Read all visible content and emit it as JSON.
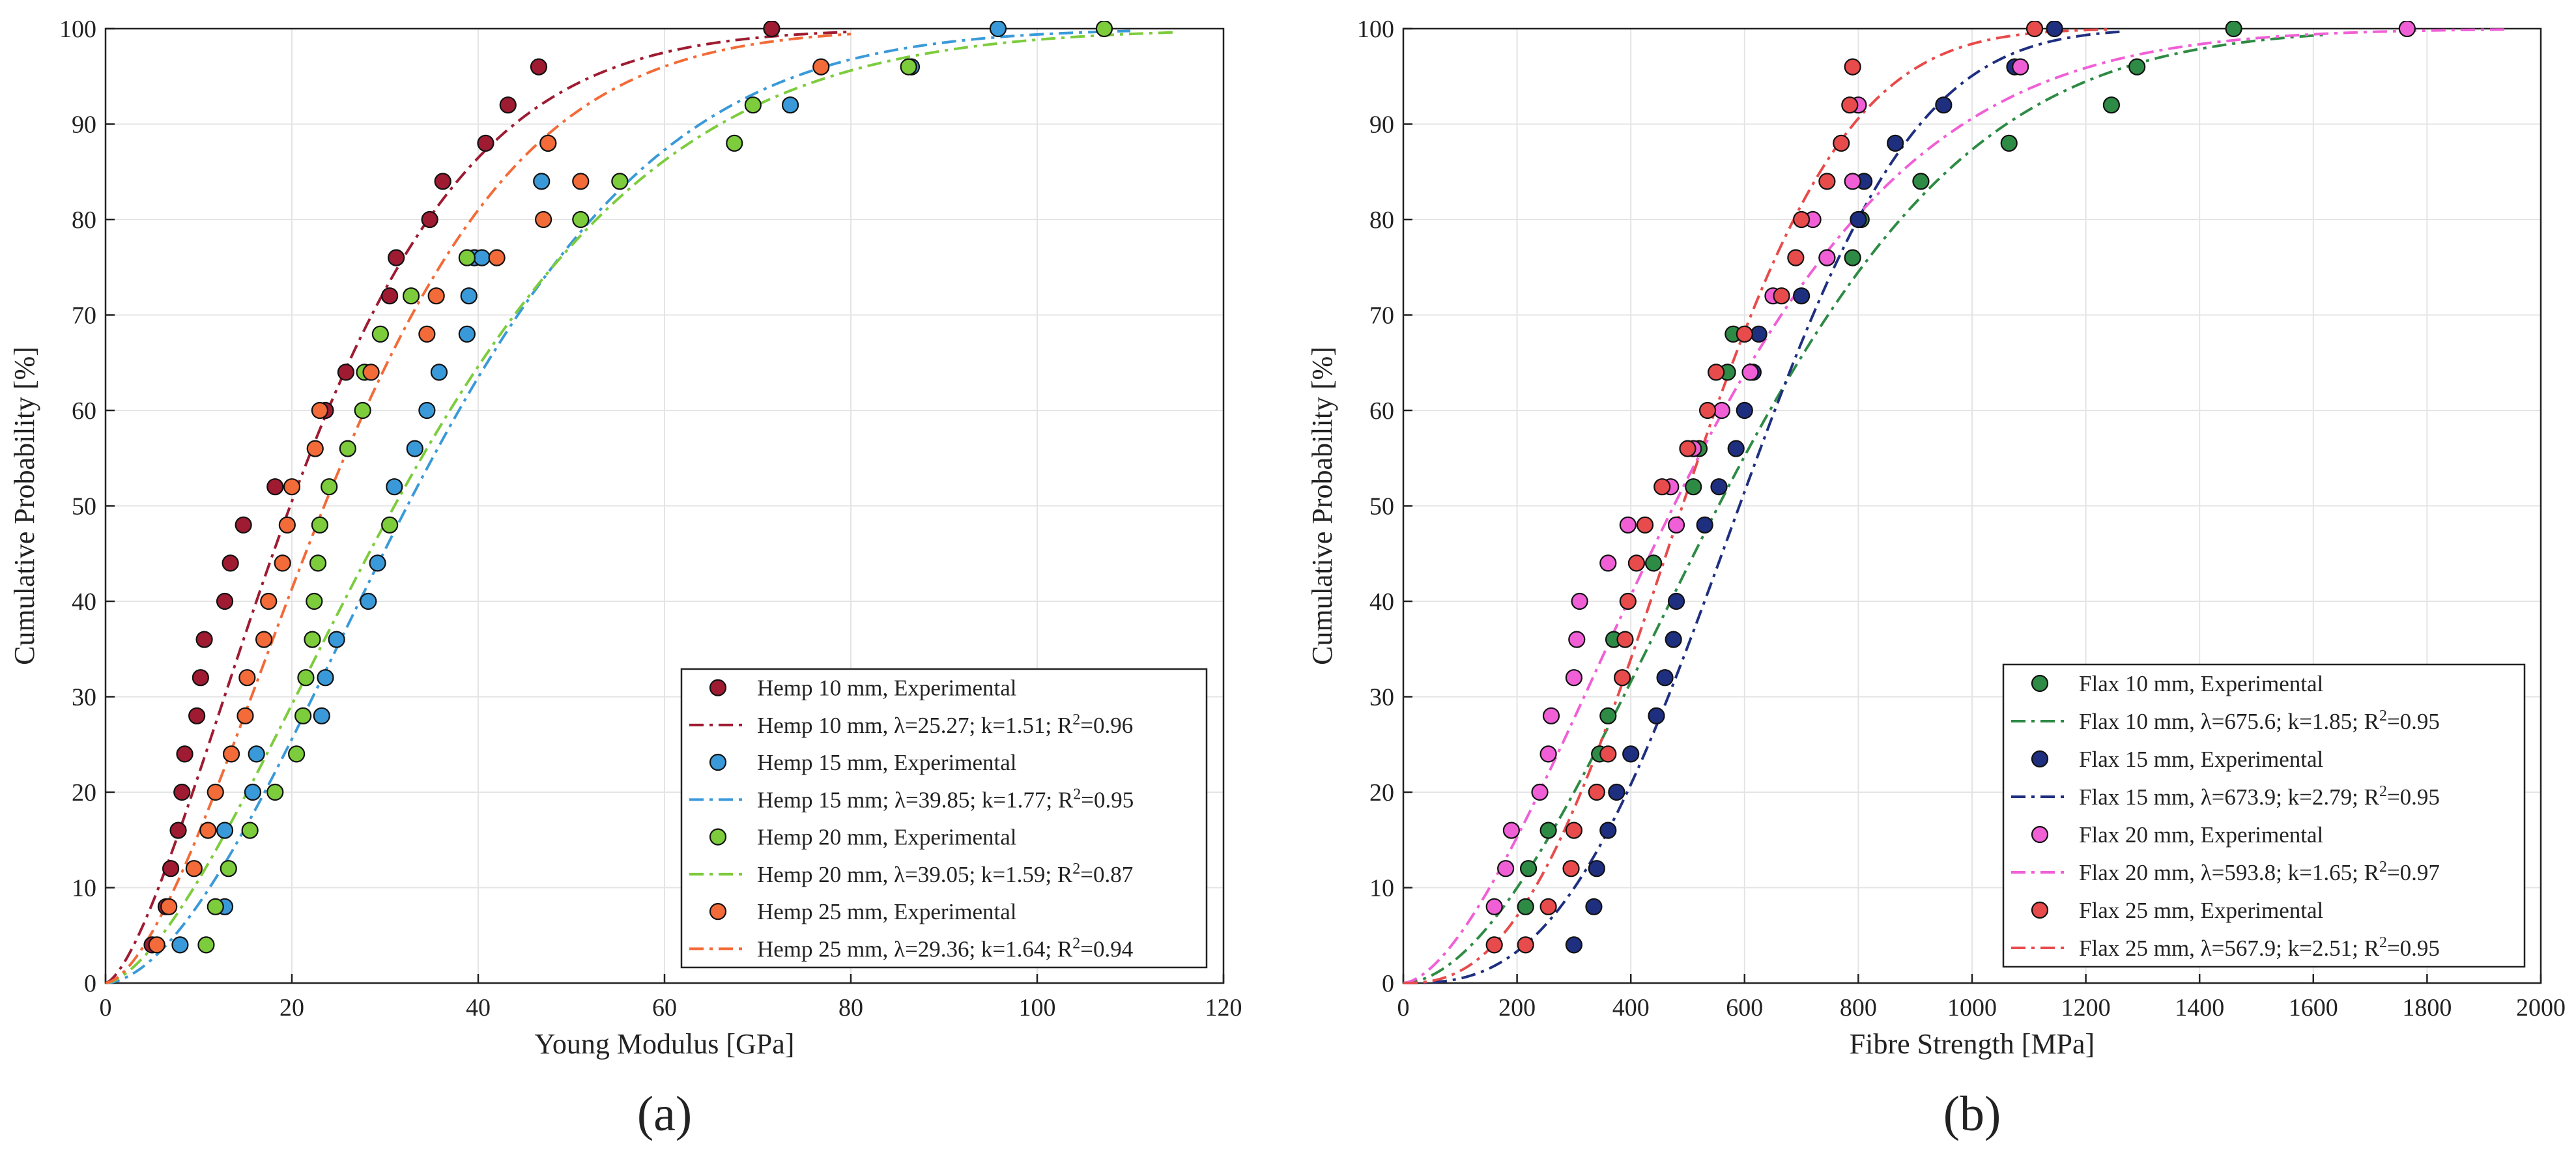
{
  "chart_data": [
    {
      "type": "scatter",
      "panel_label": "(a)",
      "xlabel": "Young Modulus [GPa]",
      "ylabel": "Cumulative Probability [%]",
      "xlim": [
        0,
        120
      ],
      "ylim": [
        0,
        100
      ],
      "xticks": [
        0,
        20,
        40,
        60,
        80,
        100,
        120
      ],
      "yticks": [
        0,
        10,
        20,
        30,
        40,
        50,
        60,
        70,
        80,
        90,
        100
      ],
      "grid": true,
      "legend_position": "bottom-right",
      "series": [
        {
          "name": "Hemp 10 mm, Experimental",
          "kind": "points",
          "color": "#9e1b32",
          "x": [
            5.0,
            6.5,
            7.0,
            7.8,
            8.2,
            8.5,
            9.8,
            10.2,
            10.6,
            12.8,
            13.4,
            14.8,
            18.2,
            23.6,
            25.8,
            30.5,
            31.2,
            34.8,
            36.2,
            40.8,
            43.2,
            46.5,
            71.5
          ],
          "y": [
            4,
            8,
            12,
            16,
            20,
            24,
            28,
            32,
            36,
            40,
            44,
            48,
            52,
            60,
            64,
            72,
            76,
            80,
            84,
            88,
            92,
            96,
            100
          ]
        },
        {
          "name": "Hemp 10 mm, ",
          "name_params": "λ=25.27; k=1.51; R²=0.96",
          "kind": "weibull",
          "color": "#9e1b32",
          "scale": 25.27,
          "shape": 1.51,
          "x_range": [
            0,
            80
          ]
        },
        {
          "name": "Hemp 15 mm, Experimental",
          "kind": "points",
          "color": "#3a9ad9",
          "x": [
            8.0,
            12.8,
            12.8,
            15.8,
            16.2,
            23.2,
            23.6,
            24.8,
            28.2,
            29.2,
            31.0,
            33.2,
            34.5,
            35.8,
            38.8,
            39.0,
            39.6,
            40.4,
            46.8,
            47.5,
            86.5,
            95.8,
            73.5
          ],
          "y": [
            4,
            8,
            16,
            20,
            24,
            28,
            32,
            36,
            40,
            44,
            52,
            56,
            60,
            64,
            68,
            72,
            76,
            76,
            84,
            88,
            96,
            100,
            92
          ]
        },
        {
          "name": "Hemp 15 mm; ",
          "name_params": "λ=39.85; k=1.77; R²=0.95",
          "kind": "weibull",
          "color": "#3a9ad9",
          "scale": 39.85,
          "shape": 1.77,
          "x_range": [
            0,
            110
          ]
        },
        {
          "name": "Hemp 20 mm, Experimental",
          "kind": "points",
          "color": "#7ccc3c",
          "x": [
            10.8,
            11.8,
            13.2,
            15.5,
            18.2,
            20.5,
            21.2,
            21.5,
            22.2,
            22.4,
            22.8,
            23.0,
            24.0,
            26.0,
            27.6,
            27.8,
            29.5,
            30.5,
            32.8,
            38.8,
            51.0,
            55.2,
            67.5,
            69.5,
            86.2,
            107.2
          ],
          "y": [
            4,
            8,
            12,
            16,
            20,
            24,
            28,
            32,
            36,
            40,
            44,
            48,
            52,
            56,
            60,
            64,
            68,
            48,
            72,
            76,
            80,
            84,
            88,
            92,
            96,
            100
          ]
        },
        {
          "name": "Hemp 20 mm, ",
          "name_params": "λ=39.05; k=1.59; R²=0.87",
          "kind": "weibull",
          "color": "#7ccc3c",
          "scale": 39.05,
          "shape": 1.59,
          "x_range": [
            0,
            115
          ]
        },
        {
          "name": "Hemp 25 mm, Experimental",
          "kind": "points",
          "color": "#f26b38",
          "x": [
            5.5,
            6.8,
            9.5,
            11.0,
            11.8,
            13.5,
            15.0,
            15.2,
            17.0,
            17.5,
            19.0,
            19.5,
            20.0,
            22.5,
            23.0,
            28.5,
            34.5,
            35.5,
            42.0,
            47.0,
            47.5,
            51.0,
            76.8
          ],
          "y": [
            4,
            8,
            12,
            16,
            20,
            24,
            28,
            32,
            36,
            40,
            44,
            48,
            52,
            56,
            60,
            64,
            68,
            72,
            76,
            80,
            88,
            84,
            96
          ]
        },
        {
          "name": "Hemp 25 mm, ",
          "name_params": "λ=29.36; k=1.64; R²=0.94",
          "kind": "weibull",
          "color": "#f26b38",
          "scale": 29.36,
          "shape": 1.64,
          "x_range": [
            0,
            80
          ]
        }
      ]
    },
    {
      "type": "scatter",
      "panel_label": "(b)",
      "xlabel": "Fibre Strength [MPa]",
      "ylabel": "Cumulative Probability [%]",
      "xlim": [
        0,
        2000
      ],
      "ylim": [
        0,
        100
      ],
      "xticks": [
        0,
        200,
        400,
        600,
        800,
        1000,
        1200,
        1400,
        1600,
        1800,
        2000
      ],
      "yticks": [
        0,
        10,
        20,
        30,
        40,
        50,
        60,
        70,
        80,
        90,
        100
      ],
      "grid": true,
      "legend_position": "bottom-right",
      "series": [
        {
          "name": "Flax 10 mm, Experimental",
          "kind": "points",
          "color": "#2e8b45",
          "x": [
            215,
            220,
            255,
            345,
            360,
            370,
            440,
            510,
            520,
            570,
            580,
            790,
            805,
            910,
            1065,
            1245,
            1290,
            1460
          ],
          "y": [
            8,
            12,
            16,
            24,
            28,
            36,
            44,
            52,
            56,
            64,
            68,
            76,
            80,
            84,
            88,
            92,
            96,
            100
          ],
          "note": "approx"
        },
        {
          "name": "Flax 10 mm, ",
          "name_params": "λ=675.6; k=1.85; R²=0.95",
          "kind": "weibull",
          "color": "#2e8b45",
          "scale": 675.6,
          "shape": 1.85,
          "x_range": [
            0,
            1620
          ]
        },
        {
          "name": "Flax 15 mm, Experimental",
          "kind": "points",
          "color": "#1f2f80",
          "x": [
            300,
            335,
            340,
            360,
            375,
            400,
            445,
            460,
            475,
            480,
            530,
            555,
            585,
            600,
            615,
            625,
            700,
            745,
            800,
            810,
            865,
            950,
            1075,
            1145
          ],
          "y": [
            4,
            8,
            12,
            16,
            20,
            24,
            28,
            32,
            36,
            40,
            48,
            52,
            56,
            60,
            64,
            68,
            72,
            76,
            80,
            84,
            88,
            92,
            96,
            100
          ]
        },
        {
          "name": "Flax 15 mm, ",
          "name_params": "λ=673.9; k=2.79; R²=0.95",
          "kind": "weibull",
          "color": "#1f2f80",
          "scale": 673.9,
          "shape": 2.79,
          "x_range": [
            0,
            1260
          ]
        },
        {
          "name": "Flax 20 mm, Experimental",
          "kind": "points",
          "color": "#f05fd6",
          "x": [
            160,
            180,
            190,
            240,
            255,
            260,
            300,
            305,
            310,
            360,
            395,
            470,
            480,
            510,
            560,
            610,
            650,
            720,
            745,
            790,
            800,
            1085,
            1765
          ],
          "y": [
            8,
            12,
            16,
            20,
            24,
            28,
            32,
            36,
            40,
            44,
            48,
            52,
            48,
            56,
            60,
            64,
            72,
            80,
            76,
            84,
            92,
            96,
            100
          ]
        },
        {
          "name": "Flax 20 mm, ",
          "name_params": "λ=593.8; k=1.65; R²=0.97",
          "kind": "weibull",
          "color": "#f05fd6",
          "scale": 593.8,
          "shape": 1.65,
          "x_range": [
            0,
            1940
          ]
        },
        {
          "name": "Flax 25 mm, Experimental",
          "kind": "points",
          "color": "#e84b4b",
          "x": [
            160,
            215,
            255,
            295,
            300,
            340,
            360,
            385,
            390,
            395,
            410,
            425,
            455,
            500,
            535,
            550,
            600,
            665,
            690,
            700,
            745,
            770,
            785,
            790,
            1110
          ],
          "y": [
            4,
            4,
            8,
            12,
            16,
            20,
            24,
            32,
            36,
            40,
            44,
            48,
            52,
            56,
            60,
            64,
            68,
            72,
            76,
            80,
            84,
            88,
            92,
            96,
            100
          ],
          "note": "approx"
        },
        {
          "name": "Flax 25 mm, ",
          "name_params": "λ=567.9; k=2.51; R²=0.95",
          "kind": "weibull",
          "color": "#e84b4b",
          "scale": 567.9,
          "shape": 2.51,
          "x_range": [
            0,
            1240
          ]
        }
      ]
    }
  ]
}
